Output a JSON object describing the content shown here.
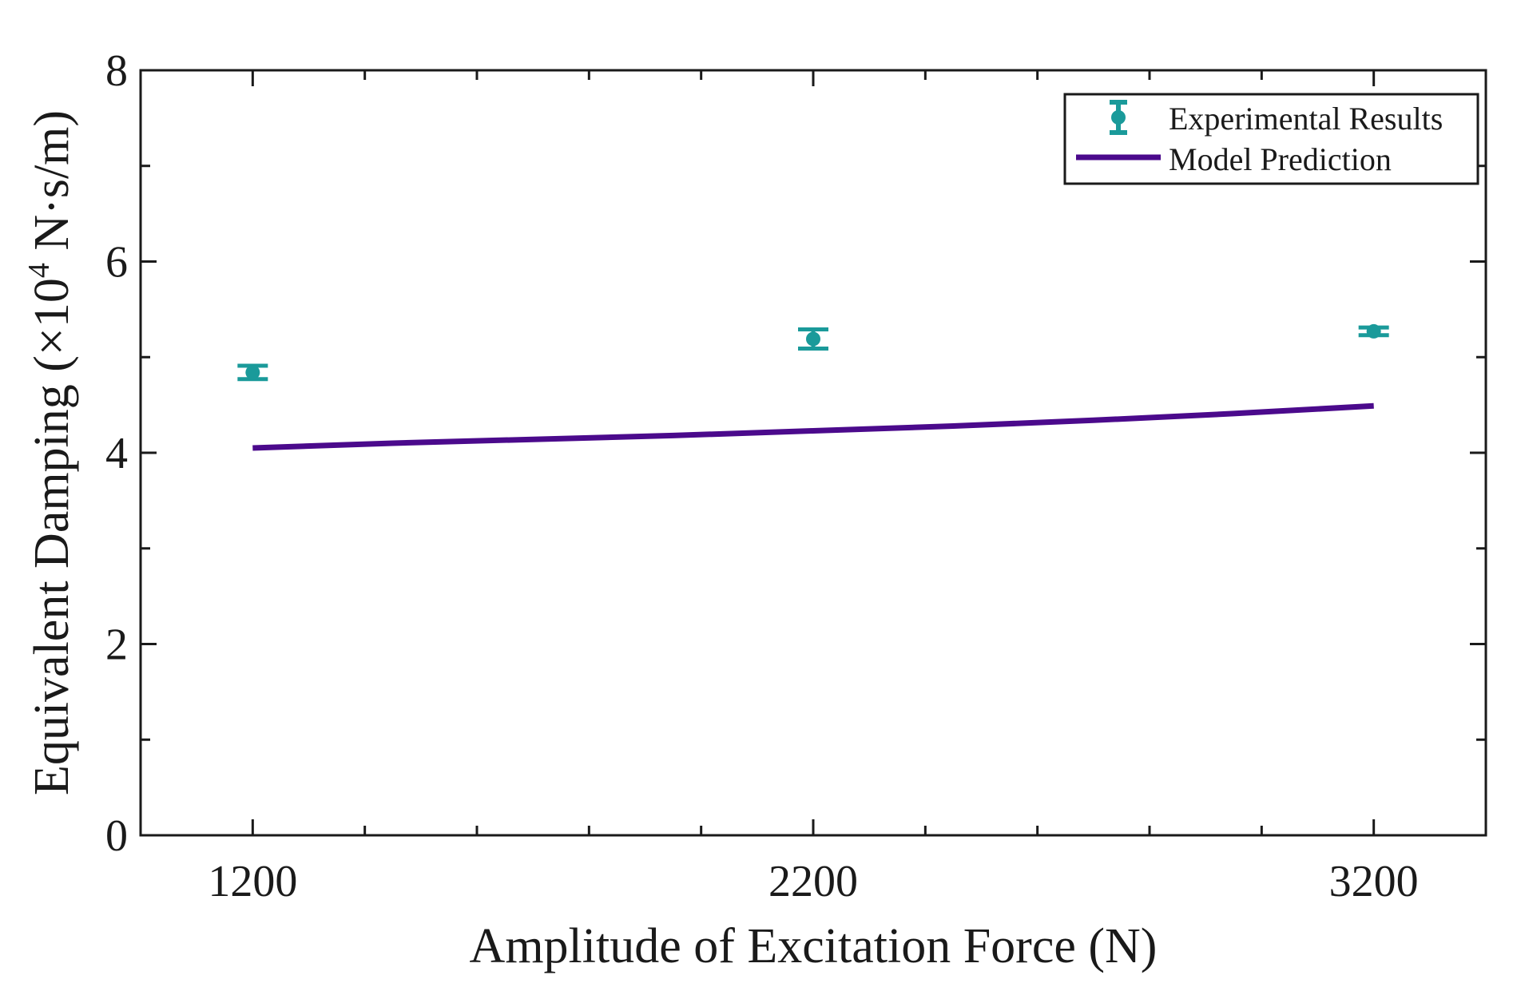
{
  "chart_data": {
    "type": "line",
    "xlabel": "Amplitude of Excitation Force (N)",
    "ylabel_main": "Equivalent Damping (",
    "ylabel_times": "×10",
    "ylabel_exp": "4",
    "ylabel_unit": " N·s/m)",
    "xlim": [
      1000,
      3400
    ],
    "ylim": [
      0,
      8
    ],
    "x_ticks": [
      1200,
      2200,
      3200
    ],
    "x_tick_labels": [
      "1200",
      "2200",
      "3200"
    ],
    "x_minor_step": 200,
    "y_ticks": [
      0,
      2,
      4,
      6,
      8
    ],
    "y_tick_labels": [
      "0",
      "2",
      "4",
      "6",
      "8"
    ],
    "y_minor_step": 1,
    "legend_position": "top-right",
    "series": [
      {
        "name": "Experimental Results",
        "kind": "errorbar",
        "color": "#1a9a9a",
        "x": [
          1200,
          2200,
          3200
        ],
        "y": [
          4.84,
          5.19,
          5.27
        ],
        "err": [
          0.07,
          0.1,
          0.04
        ]
      },
      {
        "name": "Model Prediction",
        "kind": "line",
        "color": "#4b0a8c",
        "x": [
          1200,
          1450,
          1700,
          1950,
          2200,
          2450,
          2700,
          2950,
          3200
        ],
        "y": [
          4.05,
          4.1,
          4.14,
          4.18,
          4.23,
          4.28,
          4.34,
          4.41,
          4.49
        ]
      }
    ]
  }
}
